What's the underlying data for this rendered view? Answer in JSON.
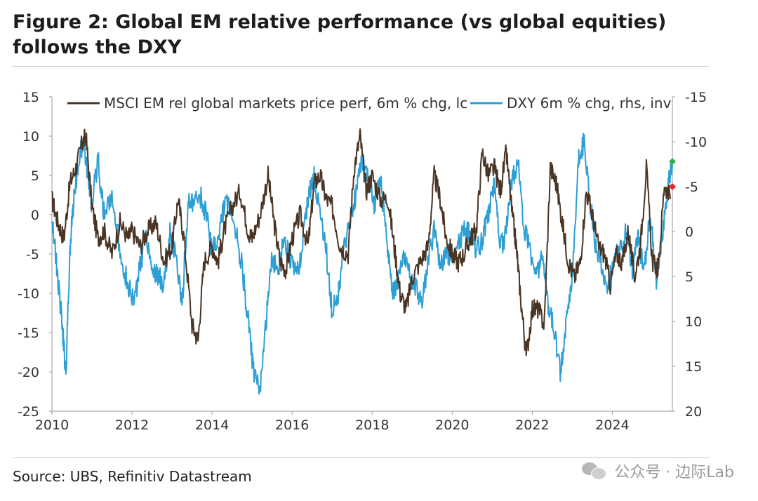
{
  "figure": {
    "title": "Figure 2: Global EM relative performance (vs global equities) follows the DXY",
    "source": "Source: UBS, Refinitiv Datastream",
    "watermark": "公众号 · 边际Lab"
  },
  "chart_data": {
    "type": "line",
    "title": "Figure 2: Global EM relative performance (vs global equities) follows the DXY",
    "xlabel": "",
    "ylabel": "",
    "x_ticks": [
      "2010",
      "2012",
      "2014",
      "2016",
      "2018",
      "2020",
      "2022",
      "2024"
    ],
    "xlim": [
      2010.0,
      2025.5
    ],
    "y_left": {
      "ylim": [
        -25,
        15
      ],
      "ticks": [
        15,
        10,
        5,
        0,
        -5,
        -10,
        -15,
        -20,
        -25
      ]
    },
    "y_right": {
      "ylim": [
        -15,
        20
      ],
      "inverted": true,
      "ticks": [
        -15,
        -10,
        -5,
        0,
        5,
        10,
        15,
        20
      ]
    },
    "grid": false,
    "legend": "top",
    "series": [
      {
        "name": "MSCI EM rel global markets price perf, 6m % chg, lc",
        "axis": "left",
        "color": "#4a3424",
        "x": [
          2010.0,
          2010.15,
          2010.3,
          2010.45,
          2010.6,
          2010.75,
          2010.85,
          2011.0,
          2011.15,
          2011.3,
          2011.5,
          2011.7,
          2011.9,
          2012.0,
          2012.2,
          2012.4,
          2012.6,
          2012.8,
          2013.0,
          2013.15,
          2013.3,
          2013.5,
          2013.65,
          2013.8,
          2014.0,
          2014.15,
          2014.3,
          2014.5,
          2014.7,
          2014.9,
          2015.0,
          2015.2,
          2015.4,
          2015.55,
          2015.7,
          2015.85,
          2016.0,
          2016.2,
          2016.4,
          2016.55,
          2016.7,
          2016.85,
          2017.0,
          2017.2,
          2017.4,
          2017.55,
          2017.7,
          2017.85,
          2018.0,
          2018.2,
          2018.4,
          2018.55,
          2018.7,
          2018.85,
          2019.0,
          2019.2,
          2019.4,
          2019.55,
          2019.7,
          2019.85,
          2020.0,
          2020.15,
          2020.3,
          2020.45,
          2020.6,
          2020.75,
          2020.9,
          2021.05,
          2021.2,
          2021.35,
          2021.5,
          2021.6,
          2021.7,
          2021.85,
          2022.0,
          2022.15,
          2022.3,
          2022.45,
          2022.6,
          2022.75,
          2022.9,
          2023.05,
          2023.2,
          2023.35,
          2023.5,
          2023.65,
          2023.8,
          2023.95,
          2024.1,
          2024.25,
          2024.4,
          2024.55,
          2024.7,
          2024.85,
          2025.0,
          2025.15,
          2025.3,
          2025.45
        ],
        "values": [
          2,
          -1,
          -3,
          4,
          6,
          9,
          10,
          1,
          -3,
          -2,
          -5,
          -1,
          -3,
          -2,
          -4,
          -2,
          -1,
          -6,
          -4,
          2,
          -3,
          -14,
          -16,
          -6,
          -4,
          -6,
          -2,
          1,
          3,
          -2,
          -3,
          0,
          5,
          -1,
          -6,
          -7,
          -3,
          0,
          -4,
          4,
          5,
          2,
          1,
          -4,
          -5,
          6,
          10,
          3,
          5,
          2,
          2,
          -4,
          -10,
          -12,
          -8,
          -6,
          -4,
          5,
          2,
          -3,
          -5,
          -6,
          -5,
          -3,
          -2,
          8,
          5,
          6,
          3,
          8,
          0,
          -4,
          -10,
          -18,
          -12,
          -12,
          -14,
          6,
          4,
          -1,
          -6,
          -8,
          -6,
          3,
          0,
          -4,
          -5,
          -9,
          -5,
          -6,
          -2,
          -8,
          -4,
          6,
          -6,
          -7,
          4,
          2
        ]
      },
      {
        "name": "DXY 6m % chg, rhs, inv",
        "axis": "right",
        "color": "#2e9fd4",
        "x": [
          2010.0,
          2010.12,
          2010.25,
          2010.35,
          2010.45,
          2010.55,
          2010.7,
          2010.8,
          2010.9,
          2011.0,
          2011.15,
          2011.3,
          2011.5,
          2011.7,
          2011.9,
          2012.05,
          2012.2,
          2012.35,
          2012.5,
          2012.65,
          2012.8,
          2012.95,
          2013.1,
          2013.25,
          2013.4,
          2013.55,
          2013.7,
          2013.85,
          2014.0,
          2014.15,
          2014.3,
          2014.45,
          2014.6,
          2014.75,
          2014.9,
          2015.05,
          2015.2,
          2015.35,
          2015.5,
          2015.65,
          2015.8,
          2015.95,
          2016.1,
          2016.25,
          2016.4,
          2016.55,
          2016.7,
          2016.85,
          2017.0,
          2017.15,
          2017.3,
          2017.45,
          2017.6,
          2017.75,
          2017.9,
          2018.05,
          2018.2,
          2018.35,
          2018.5,
          2018.65,
          2018.8,
          2018.95,
          2019.1,
          2019.25,
          2019.4,
          2019.55,
          2019.7,
          2019.85,
          2020.0,
          2020.15,
          2020.3,
          2020.45,
          2020.6,
          2020.75,
          2020.9,
          2021.05,
          2021.2,
          2021.35,
          2021.5,
          2021.65,
          2021.8,
          2021.95,
          2022.1,
          2022.25,
          2022.4,
          2022.55,
          2022.7,
          2022.85,
          2023.0,
          2023.15,
          2023.3,
          2023.45,
          2023.6,
          2023.75,
          2023.9,
          2024.05,
          2024.2,
          2024.35,
          2024.5,
          2024.65,
          2024.8,
          2024.95,
          2025.1,
          2025.25,
          2025.4,
          2025.5
        ],
        "values": [
          -2,
          4,
          10,
          16,
          2,
          -4,
          -9,
          -10,
          -6,
          -3,
          -8,
          -2,
          -4,
          2,
          6,
          8,
          4,
          0,
          4,
          5,
          6,
          0,
          3,
          8,
          -3,
          -3,
          -4,
          -2,
          2,
          1,
          -3,
          -3,
          0,
          4,
          10,
          16,
          18,
          10,
          3,
          4,
          1,
          3,
          5,
          2,
          -4,
          -6,
          -2,
          2,
          9,
          7,
          2,
          -2,
          -4,
          -8,
          -6,
          -3,
          -6,
          0,
          7,
          5,
          3,
          5,
          6,
          8,
          3,
          0,
          4,
          2,
          3,
          1,
          0,
          0,
          2,
          1,
          -2,
          -5,
          2,
          0,
          -6,
          -8,
          0,
          2,
          5,
          3,
          8,
          11,
          16,
          10,
          5,
          -8,
          -10,
          -3,
          2,
          4,
          6,
          2,
          2,
          0,
          4,
          1,
          4,
          -2,
          6,
          0,
          -5,
          -8
        ]
      }
    ],
    "end_markers": [
      {
        "series": "DXY 6m % chg, rhs, inv",
        "axis": "right",
        "x": 2025.5,
        "value": -7.8,
        "color": "#2bb24c"
      },
      {
        "series": "MSCI EM rel global markets price perf, 6m % chg, lc",
        "axis": "right",
        "x": 2025.5,
        "value": -5.0,
        "color": "#e8262b"
      }
    ]
  }
}
